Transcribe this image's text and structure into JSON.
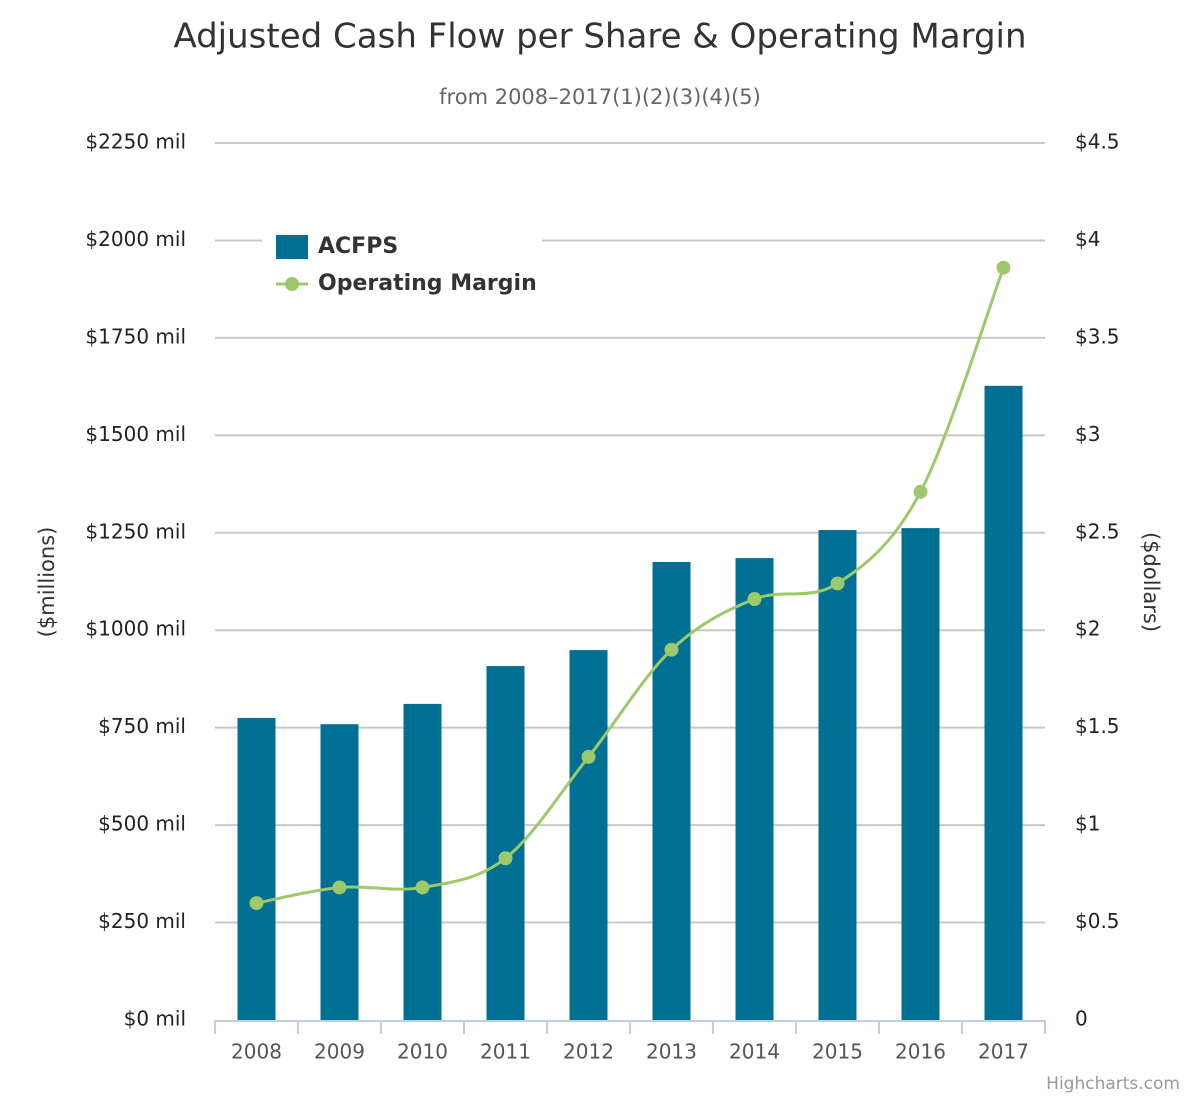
{
  "chart_data": {
    "type": "bar-line",
    "title": "Adjusted Cash Flow per Share & Operating Margin",
    "subtitle": "from 2008–2017(1)(2)(3)(4)(5)",
    "categories": [
      "2008",
      "2009",
      "2010",
      "2011",
      "2012",
      "2013",
      "2014",
      "2015",
      "2016",
      "2017"
    ],
    "series": [
      {
        "name": "ACFPS",
        "type": "bar",
        "color": "#006f94",
        "axis": "y",
        "values": [
          775,
          759,
          811,
          908,
          949,
          1175,
          1185,
          1257,
          1262,
          1627
        ]
      },
      {
        "name": "Operating Margin",
        "type": "line",
        "color": "#9dc96b",
        "axis": "y2",
        "values": [
          0.6,
          0.68,
          0.68,
          0.83,
          1.35,
          1.9,
          2.16,
          2.24,
          2.71,
          3.86
        ]
      }
    ],
    "y_label": "($millions)",
    "y2_label": "($dollars)",
    "ylim": [
      0,
      2250
    ],
    "yticks": [
      {
        "value": 0,
        "label": "$0 mil"
      },
      {
        "value": 250,
        "label": "$250 mil"
      },
      {
        "value": 500,
        "label": "$500 mil"
      },
      {
        "value": 750,
        "label": "$750 mil"
      },
      {
        "value": 1000,
        "label": "$1000 mil"
      },
      {
        "value": 1250,
        "label": "$1250 mil"
      },
      {
        "value": 1500,
        "label": "$1500 mil"
      },
      {
        "value": 1750,
        "label": "$1750 mil"
      },
      {
        "value": 2000,
        "label": "$2000 mil"
      },
      {
        "value": 2250,
        "label": "$2250 mil"
      }
    ],
    "y2lim": [
      0,
      4.5
    ],
    "y2ticks": [
      0,
      {
        "value": 0.5,
        "label": "$0.5"
      },
      {
        "value": 1,
        "label": "$1"
      },
      {
        "value": 1.5,
        "label": "$1.5"
      },
      {
        "value": 2,
        "label": "$2"
      },
      {
        "value": 2.5,
        "label": "$2.5"
      },
      {
        "value": 3,
        "label": "$3"
      },
      {
        "value": 3.5,
        "label": "$3.5"
      },
      {
        "value": 4,
        "label": "$4"
      },
      {
        "value": 4.5,
        "label": "$4.5"
      }
    ],
    "grid": true,
    "legend": "top-left",
    "credits": "Highcharts.com"
  }
}
